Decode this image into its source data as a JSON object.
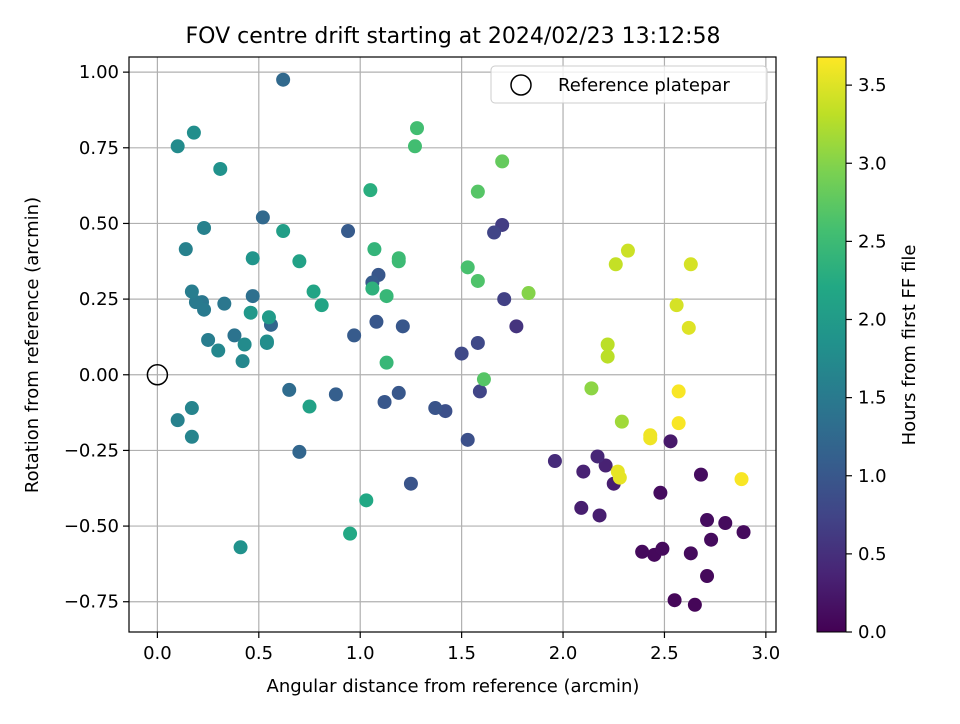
{
  "chart_data": {
    "type": "scatter",
    "title": "FOV centre drift starting at 2024/02/23 13:12:58",
    "xlabel": "Angular distance from reference (arcmin)",
    "ylabel": "Rotation from reference (arcmin)",
    "xlim": [
      -0.14,
      3.05
    ],
    "ylim": [
      -0.85,
      1.05
    ],
    "xticks": [
      0.0,
      0.5,
      1.0,
      1.5,
      2.0,
      2.5,
      3.0
    ],
    "xtick_labels": [
      "0.0",
      "0.5",
      "1.0",
      "1.5",
      "2.0",
      "2.5",
      "3.0"
    ],
    "yticks": [
      -0.75,
      -0.5,
      -0.25,
      0.0,
      0.25,
      0.5,
      0.75,
      1.0
    ],
    "ytick_labels": [
      "−0.75",
      "−0.50",
      "−0.25",
      "0.00",
      "0.25",
      "0.50",
      "0.75",
      "1.00"
    ],
    "grid": true,
    "legend": {
      "position": "top-right",
      "entries": [
        {
          "label": "Reference platepar",
          "marker": "open-circle"
        }
      ]
    },
    "reference_point": {
      "x": 0.0,
      "y": 0.0
    },
    "colorbar": {
      "label": "Hours from first FF file",
      "colormap": "viridis",
      "range": [
        0.0,
        3.68
      ],
      "ticks": [
        0.0,
        0.5,
        1.0,
        1.5,
        2.0,
        2.5,
        3.0,
        3.5
      ],
      "tick_labels": [
        "0.0",
        "0.5",
        "1.0",
        "1.5",
        "2.0",
        "2.5",
        "3.0",
        "3.5"
      ]
    },
    "points": [
      {
        "x": 2.65,
        "y": -0.76,
        "c": 0.05
      },
      {
        "x": 2.55,
        "y": -0.745,
        "c": 0.06
      },
      {
        "x": 2.71,
        "y": -0.665,
        "c": 0.08
      },
      {
        "x": 2.45,
        "y": -0.595,
        "c": 0.08
      },
      {
        "x": 2.49,
        "y": -0.575,
        "c": 0.09
      },
      {
        "x": 2.39,
        "y": -0.585,
        "c": 0.09
      },
      {
        "x": 2.63,
        "y": -0.59,
        "c": 0.1
      },
      {
        "x": 2.73,
        "y": -0.545,
        "c": 0.1
      },
      {
        "x": 2.89,
        "y": -0.52,
        "c": 0.1
      },
      {
        "x": 2.8,
        "y": -0.49,
        "c": 0.1
      },
      {
        "x": 2.71,
        "y": -0.48,
        "c": 0.12
      },
      {
        "x": 2.48,
        "y": -0.39,
        "c": 0.12
      },
      {
        "x": 2.68,
        "y": -0.33,
        "c": 0.12
      },
      {
        "x": 2.53,
        "y": -0.22,
        "c": 0.25
      },
      {
        "x": 2.25,
        "y": -0.36,
        "c": 0.3
      },
      {
        "x": 2.18,
        "y": -0.465,
        "c": 0.3
      },
      {
        "x": 2.09,
        "y": -0.44,
        "c": 0.3
      },
      {
        "x": 2.1,
        "y": -0.32,
        "c": 0.35
      },
      {
        "x": 2.21,
        "y": -0.3,
        "c": 0.35
      },
      {
        "x": 2.17,
        "y": -0.27,
        "c": 0.4
      },
      {
        "x": 1.96,
        "y": -0.285,
        "c": 0.45
      },
      {
        "x": 1.77,
        "y": 0.16,
        "c": 0.55
      },
      {
        "x": 1.7,
        "y": 0.495,
        "c": 0.65
      },
      {
        "x": 1.71,
        "y": 0.25,
        "c": 0.7
      },
      {
        "x": 1.66,
        "y": 0.47,
        "c": 0.75
      },
      {
        "x": 1.59,
        "y": -0.055,
        "c": 0.75
      },
      {
        "x": 1.58,
        "y": 0.105,
        "c": 0.8
      },
      {
        "x": 1.5,
        "y": 0.07,
        "c": 0.8
      },
      {
        "x": 1.53,
        "y": -0.215,
        "c": 0.9
      },
      {
        "x": 1.42,
        "y": -0.12,
        "c": 0.9
      },
      {
        "x": 1.37,
        "y": -0.11,
        "c": 0.95
      },
      {
        "x": 1.25,
        "y": -0.36,
        "c": 0.95
      },
      {
        "x": 1.21,
        "y": 0.16,
        "c": 1.0
      },
      {
        "x": 1.19,
        "y": -0.06,
        "c": 1.0
      },
      {
        "x": 1.12,
        "y": -0.09,
        "c": 1.0
      },
      {
        "x": 1.09,
        "y": 0.33,
        "c": 1.0
      },
      {
        "x": 1.08,
        "y": 0.175,
        "c": 1.0
      },
      {
        "x": 1.06,
        "y": 0.305,
        "c": 1.05
      },
      {
        "x": 0.94,
        "y": 0.475,
        "c": 1.05
      },
      {
        "x": 0.97,
        "y": 0.13,
        "c": 1.05
      },
      {
        "x": 0.88,
        "y": -0.065,
        "c": 1.1
      },
      {
        "x": 0.7,
        "y": -0.255,
        "c": 1.2
      },
      {
        "x": 0.56,
        "y": 0.165,
        "c": 1.2
      },
      {
        "x": 0.52,
        "y": 0.52,
        "c": 1.25
      },
      {
        "x": 0.62,
        "y": 0.975,
        "c": 1.25
      },
      {
        "x": 0.65,
        "y": -0.05,
        "c": 1.3
      },
      {
        "x": 0.47,
        "y": 0.26,
        "c": 1.35
      },
      {
        "x": 0.38,
        "y": 0.13,
        "c": 1.4
      },
      {
        "x": 0.33,
        "y": 0.235,
        "c": 1.45
      },
      {
        "x": 0.22,
        "y": 0.24,
        "c": 1.45
      },
      {
        "x": 0.23,
        "y": 0.215,
        "c": 1.5
      },
      {
        "x": 0.19,
        "y": 0.24,
        "c": 1.5
      },
      {
        "x": 0.25,
        "y": 0.115,
        "c": 1.55
      },
      {
        "x": 0.17,
        "y": 0.275,
        "c": 1.55
      },
      {
        "x": 0.14,
        "y": 0.415,
        "c": 1.6
      },
      {
        "x": 0.23,
        "y": 0.485,
        "c": 1.6
      },
      {
        "x": 0.1,
        "y": -0.15,
        "c": 1.6
      },
      {
        "x": 0.17,
        "y": -0.11,
        "c": 1.65
      },
      {
        "x": 0.17,
        "y": -0.205,
        "c": 1.65
      },
      {
        "x": 0.3,
        "y": 0.08,
        "c": 1.7
      },
      {
        "x": 0.42,
        "y": 0.045,
        "c": 1.7
      },
      {
        "x": 0.43,
        "y": 0.1,
        "c": 1.75
      },
      {
        "x": 0.54,
        "y": 0.105,
        "c": 1.75
      },
      {
        "x": 0.54,
        "y": 0.11,
        "c": 1.8
      },
      {
        "x": 0.1,
        "y": 0.755,
        "c": 1.75
      },
      {
        "x": 0.18,
        "y": 0.8,
        "c": 1.8
      },
      {
        "x": 0.31,
        "y": 0.68,
        "c": 1.85
      },
      {
        "x": 0.41,
        "y": -0.57,
        "c": 1.85
      },
      {
        "x": 0.47,
        "y": 0.385,
        "c": 1.9
      },
      {
        "x": 0.46,
        "y": 0.205,
        "c": 1.95
      },
      {
        "x": 0.55,
        "y": 0.19,
        "c": 2.0
      },
      {
        "x": 0.62,
        "y": 0.475,
        "c": 2.05
      },
      {
        "x": 0.7,
        "y": 0.375,
        "c": 2.1
      },
      {
        "x": 0.75,
        "y": -0.105,
        "c": 2.1
      },
      {
        "x": 0.77,
        "y": 0.275,
        "c": 2.15
      },
      {
        "x": 0.81,
        "y": 0.23,
        "c": 2.15
      },
      {
        "x": 0.95,
        "y": -0.525,
        "c": 2.2
      },
      {
        "x": 1.03,
        "y": -0.415,
        "c": 2.2
      },
      {
        "x": 1.05,
        "y": 0.61,
        "c": 2.3
      },
      {
        "x": 1.06,
        "y": 0.285,
        "c": 2.35
      },
      {
        "x": 1.07,
        "y": 0.415,
        "c": 2.4
      },
      {
        "x": 1.13,
        "y": 0.26,
        "c": 2.45
      },
      {
        "x": 1.13,
        "y": 0.04,
        "c": 2.45
      },
      {
        "x": 1.19,
        "y": 0.385,
        "c": 2.5
      },
      {
        "x": 1.19,
        "y": 0.375,
        "c": 2.5
      },
      {
        "x": 1.27,
        "y": 0.755,
        "c": 2.55
      },
      {
        "x": 1.28,
        "y": 0.815,
        "c": 2.55
      },
      {
        "x": 1.53,
        "y": 0.355,
        "c": 2.6
      },
      {
        "x": 1.58,
        "y": 0.31,
        "c": 2.65
      },
      {
        "x": 1.58,
        "y": 0.605,
        "c": 2.7
      },
      {
        "x": 1.61,
        "y": -0.015,
        "c": 2.7
      },
      {
        "x": 1.7,
        "y": 0.705,
        "c": 2.8
      },
      {
        "x": 1.83,
        "y": 0.27,
        "c": 3.0
      },
      {
        "x": 2.14,
        "y": -0.045,
        "c": 3.05
      },
      {
        "x": 2.29,
        "y": -0.155,
        "c": 3.15
      },
      {
        "x": 2.22,
        "y": 0.06,
        "c": 3.3
      },
      {
        "x": 2.22,
        "y": 0.1,
        "c": 3.3
      },
      {
        "x": 2.26,
        "y": 0.365,
        "c": 3.35
      },
      {
        "x": 2.32,
        "y": 0.41,
        "c": 3.4
      },
      {
        "x": 2.56,
        "y": 0.23,
        "c": 3.45
      },
      {
        "x": 2.63,
        "y": 0.365,
        "c": 3.45
      },
      {
        "x": 2.62,
        "y": 0.155,
        "c": 3.5
      },
      {
        "x": 2.27,
        "y": -0.32,
        "c": 3.55
      },
      {
        "x": 2.28,
        "y": -0.34,
        "c": 3.55
      },
      {
        "x": 2.43,
        "y": -0.2,
        "c": 3.6
      },
      {
        "x": 2.43,
        "y": -0.21,
        "c": 3.6
      },
      {
        "x": 2.57,
        "y": -0.16,
        "c": 3.65
      },
      {
        "x": 2.57,
        "y": -0.055,
        "c": 3.65
      },
      {
        "x": 2.88,
        "y": -0.345,
        "c": 3.65
      }
    ]
  }
}
